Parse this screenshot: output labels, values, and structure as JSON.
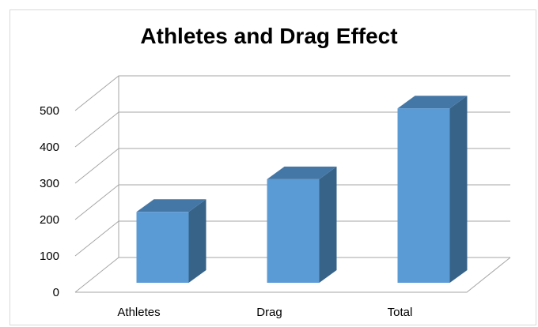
{
  "chart_data": {
    "type": "bar",
    "title": "Athletes and Drag Effect",
    "categories": [
      "Athletes",
      "Drag",
      "Total"
    ],
    "values": [
      195,
      285,
      480
    ],
    "ylim": [
      0,
      500
    ],
    "yticks": [
      0,
      100,
      200,
      300,
      400,
      500
    ],
    "grid": true,
    "three_d": true,
    "colors": {
      "front": "#5b9bd5",
      "side": "#376388",
      "top": "#4577a6",
      "grid": "#a6a6a6"
    }
  }
}
